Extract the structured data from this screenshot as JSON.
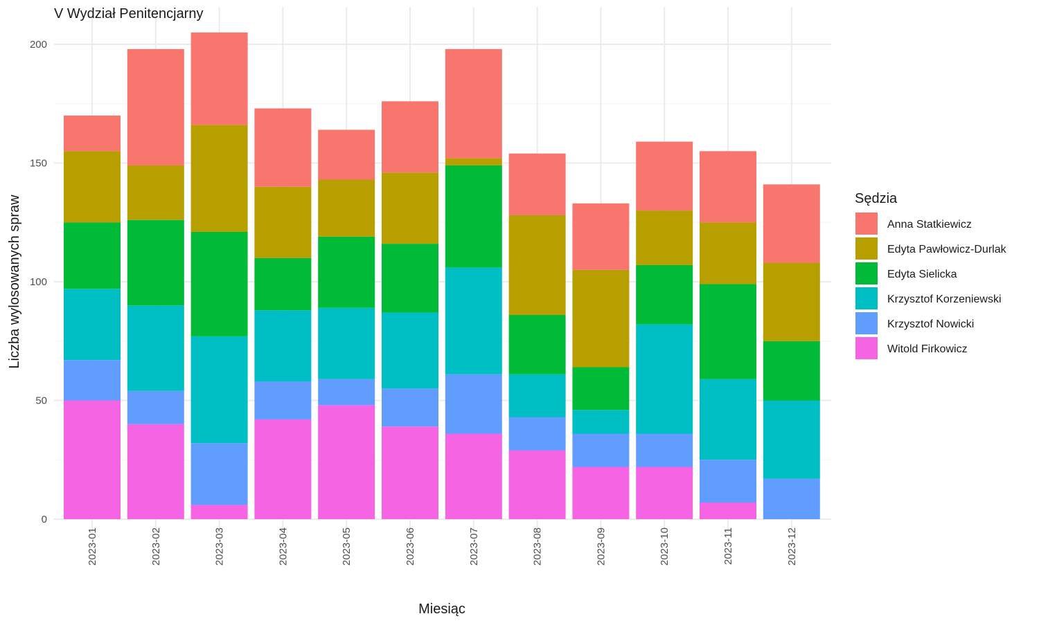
{
  "chart_data": {
    "type": "bar",
    "stacked": true,
    "title": "V Wydział Penitencjarny",
    "xlabel": "Miesiąc",
    "ylabel": "Liczba wylosowanych spraw",
    "ylim": [
      0,
      210
    ],
    "yticks": [
      0,
      50,
      100,
      150,
      200
    ],
    "grid": true,
    "legend": {
      "title": "Sędzia",
      "position": "right"
    },
    "categories": [
      "2023-01",
      "2023-02",
      "2023-03",
      "2023-04",
      "2023-05",
      "2023-06",
      "2023-07",
      "2023-08",
      "2023-09",
      "2023-10",
      "2023-11",
      "2023-12"
    ],
    "series": [
      {
        "name": "Witold Firkowicz",
        "color": "#F564E3",
        "values": [
          50,
          40,
          6,
          42,
          48,
          39,
          36,
          29,
          22,
          22,
          7,
          0
        ]
      },
      {
        "name": "Krzysztof Nowicki",
        "color": "#619CFF",
        "values": [
          17,
          14,
          26,
          16,
          11,
          16,
          25,
          14,
          14,
          14,
          18,
          17
        ]
      },
      {
        "name": "Krzysztof Korzeniewski",
        "color": "#00BFC4",
        "values": [
          30,
          36,
          45,
          30,
          30,
          32,
          45,
          18,
          10,
          46,
          34,
          33
        ]
      },
      {
        "name": "Edyta Sielicka",
        "color": "#00BA38",
        "values": [
          28,
          36,
          44,
          22,
          30,
          29,
          43,
          25,
          18,
          25,
          40,
          25
        ]
      },
      {
        "name": "Edyta Pawłowicz-Durlak",
        "color": "#B79F00",
        "values": [
          30,
          23,
          45,
          30,
          24,
          30,
          3,
          42,
          41,
          23,
          26,
          33
        ]
      },
      {
        "name": "Anna Statkiewicz",
        "color": "#F8766D",
        "values": [
          15,
          49,
          39,
          33,
          21,
          30,
          46,
          26,
          28,
          29,
          30,
          33
        ]
      }
    ],
    "legend_order": [
      "Anna Statkiewicz",
      "Edyta Pawłowicz-Durlak",
      "Edyta Sielicka",
      "Krzysztof Korzeniewski",
      "Krzysztof Nowicki",
      "Witold Firkowicz"
    ]
  }
}
